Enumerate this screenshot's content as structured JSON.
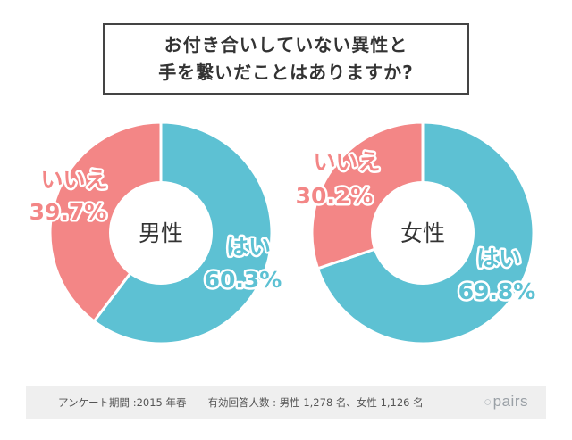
{
  "title": {
    "line1": "お付き合いしていない異性と",
    "line2": "手を繋いだことはありますか?"
  },
  "colors": {
    "yes": "#5dc1d3",
    "no": "#f38686",
    "label_text": "#ffffff"
  },
  "chart_data": [
    {
      "type": "pie",
      "center_label": "男性",
      "slices": [
        {
          "label": "はい",
          "value": 60.3,
          "value_label": "60.3%",
          "color": "#5dc1d3"
        },
        {
          "label": "いいえ",
          "value": 39.7,
          "value_label": "39.7%",
          "color": "#f38686"
        }
      ]
    },
    {
      "type": "pie",
      "center_label": "女性",
      "slices": [
        {
          "label": "はい",
          "value": 69.8,
          "value_label": "69.8%",
          "color": "#5dc1d3"
        },
        {
          "label": "いいえ",
          "value": 30.2,
          "value_label": "30.2%",
          "color": "#f38686"
        }
      ]
    }
  ],
  "footer": {
    "period": "アンケート期間 :2015 年春",
    "respondents": "有効回答人数 : 男性 1,278 名、女性 1,126 名",
    "logo": "pairs"
  }
}
